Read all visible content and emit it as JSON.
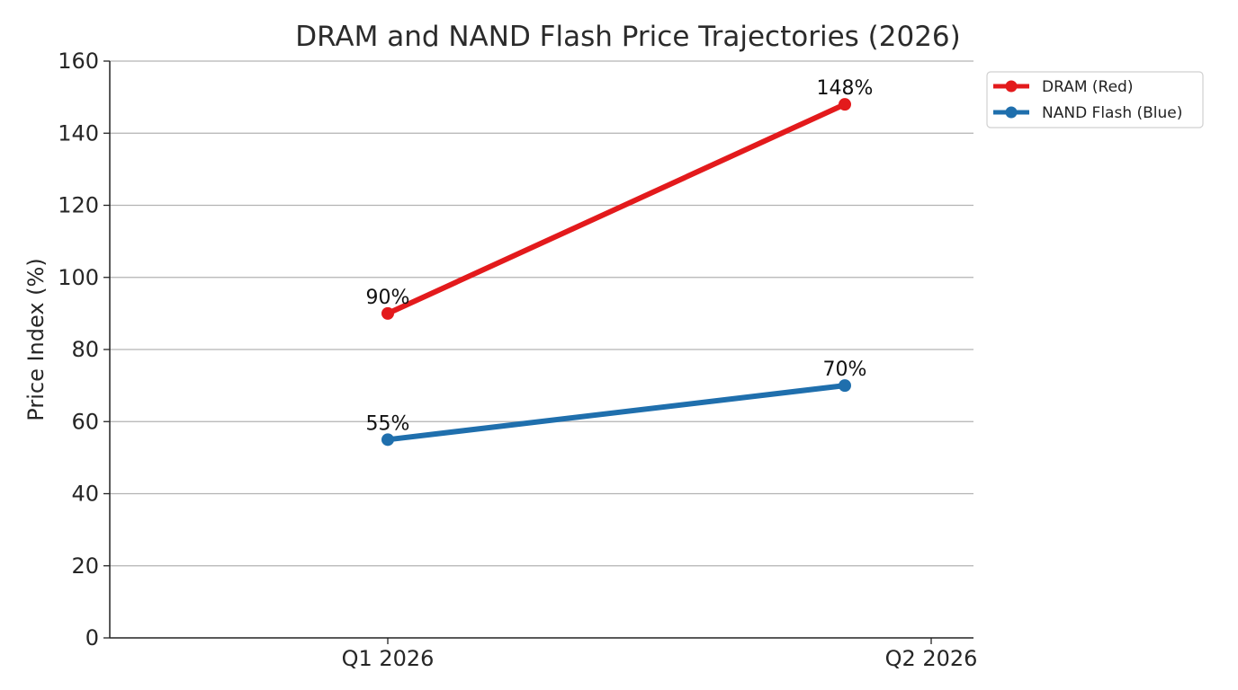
{
  "chart_data": {
    "type": "line",
    "title": "DRAM and NAND Flash Price Trajectories (2026)",
    "xlabel": "",
    "ylabel": "Price Index (%)",
    "categories": [
      "Q1 2026",
      "Q2 2026"
    ],
    "ylim": [
      0,
      160
    ],
    "yticks": [
      0,
      20,
      40,
      60,
      80,
      100,
      120,
      140,
      160
    ],
    "grid": "horizontal",
    "legend_position": "outside-top-right",
    "series": [
      {
        "name": "DRAM (Red)",
        "color": "#e31a1c",
        "points": [
          {
            "x": "Q1 2026",
            "y": 90,
            "label": "90%"
          },
          {
            "x": "Q2 2026",
            "y": 148,
            "label": "148%"
          }
        ]
      },
      {
        "name": "NAND Flash (Blue)",
        "color": "#1f6fad",
        "points": [
          {
            "x": "Q1 2026",
            "y": 55,
            "label": "55%"
          },
          {
            "x": "Q2 2026",
            "y": 70,
            "label": "70%"
          }
        ]
      }
    ]
  }
}
